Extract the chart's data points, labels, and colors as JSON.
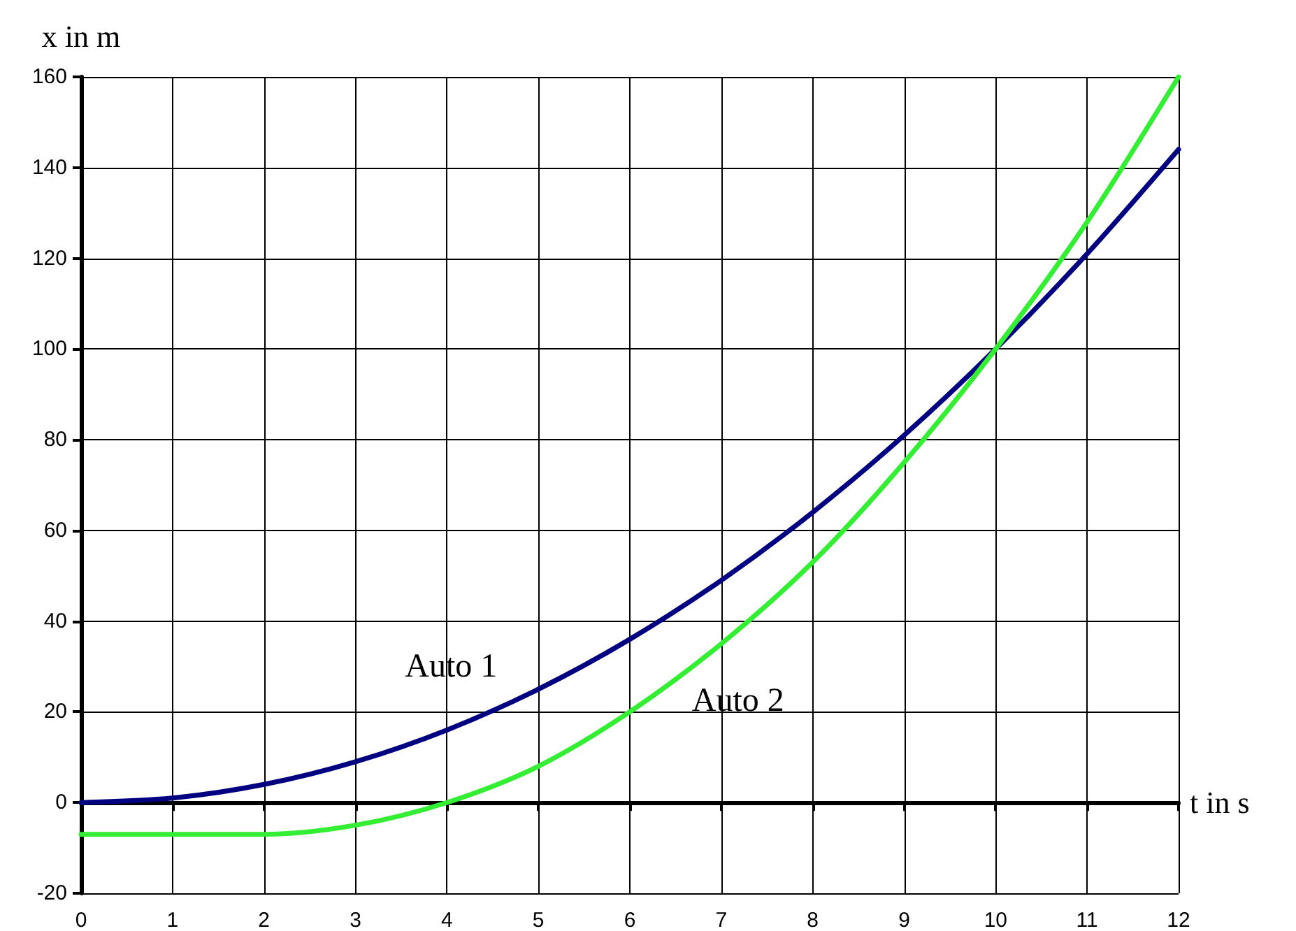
{
  "chart_data": {
    "type": "line",
    "xlabel": "t in s",
    "ylabel": "x in m",
    "x": [
      0,
      1,
      2,
      3,
      4,
      5,
      6,
      7,
      8,
      9,
      10,
      11,
      12
    ],
    "series": [
      {
        "name": "Auto 1",
        "color": "#000080",
        "values": [
          0,
          1,
          4,
          9,
          16,
          25,
          36,
          49,
          64,
          81,
          100,
          121,
          144
        ]
      },
      {
        "name": "Auto 2",
        "color": "#33ee33",
        "values": [
          -7,
          -7,
          -7,
          -5,
          0,
          8,
          20,
          35,
          53,
          75,
          100,
          128,
          160
        ]
      }
    ],
    "xlim": [
      0,
      12
    ],
    "xticks": [
      0,
      1,
      2,
      3,
      4,
      5,
      6,
      7,
      8,
      9,
      10,
      11,
      12
    ],
    "ylim": [
      -20,
      160
    ],
    "yticks": [
      -20,
      0,
      20,
      40,
      60,
      80,
      100,
      120,
      140,
      160
    ],
    "grid": true,
    "marker": "none",
    "line_style": "solid"
  }
}
